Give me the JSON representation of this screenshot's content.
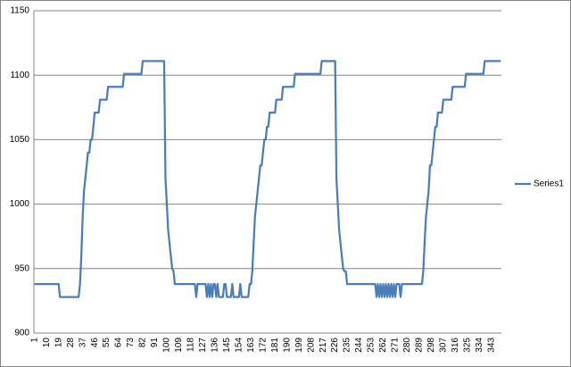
{
  "chart_data": {
    "type": "line",
    "categories": [
      1,
      null,
      null,
      null,
      null,
      null,
      null,
      null,
      null,
      10,
      null,
      null,
      null,
      null,
      null,
      null,
      null,
      null,
      19,
      null,
      null,
      null,
      null,
      null,
      null,
      null,
      null,
      28,
      null,
      null,
      null,
      null,
      null,
      null,
      null,
      null,
      37,
      null,
      null,
      null,
      null,
      null,
      null,
      null,
      null,
      46,
      null,
      null,
      null,
      null,
      null,
      null,
      null,
      null,
      55,
      null,
      null,
      null,
      null,
      null,
      null,
      null,
      null,
      64,
      null,
      null,
      null,
      null,
      null,
      null,
      null,
      null,
      73,
      null,
      null,
      null,
      null,
      null,
      null,
      null,
      null,
      82,
      null,
      null,
      null,
      null,
      null,
      null,
      null,
      null,
      91,
      null,
      null,
      null,
      null,
      null,
      null,
      null,
      null,
      100,
      null,
      null,
      null,
      null,
      null,
      null,
      null,
      null,
      109,
      null,
      null,
      null,
      null,
      null,
      null,
      null,
      null,
      118,
      null,
      null,
      null,
      null,
      null,
      null,
      null,
      null,
      127,
      null,
      null,
      null,
      null,
      null,
      null,
      null,
      null,
      136,
      null,
      null,
      null,
      null,
      null,
      null,
      null,
      null,
      145,
      null,
      null,
      null,
      null,
      null,
      null,
      null,
      null,
      154,
      null,
      null,
      null,
      null,
      null,
      null,
      null,
      null,
      163,
      null,
      null,
      null,
      null,
      null,
      null,
      null,
      null,
      172,
      null,
      null,
      null,
      null,
      null,
      null,
      null,
      null,
      181,
      null,
      null,
      null,
      null,
      null,
      null,
      null,
      null,
      190,
      null,
      null,
      null,
      null,
      null,
      null,
      null,
      null,
      199,
      null,
      null,
      null,
      null,
      null,
      null,
      null,
      null,
      208,
      null,
      null,
      null,
      null,
      null,
      null,
      null,
      null,
      217,
      null,
      null,
      null,
      null,
      null,
      null,
      null,
      null,
      226,
      null,
      null,
      null,
      null,
      null,
      null,
      null,
      null,
      235,
      null,
      null,
      null,
      null,
      null,
      null,
      null,
      null,
      244,
      null,
      null,
      null,
      null,
      null,
      null,
      null,
      null,
      253,
      null,
      null,
      null,
      null,
      null,
      null,
      null,
      null,
      262,
      null,
      null,
      null,
      null,
      null,
      null,
      null,
      null,
      271,
      null,
      null,
      null,
      null,
      null,
      null,
      null,
      null,
      280,
      null,
      null,
      null,
      null,
      null,
      null,
      null,
      null,
      289,
      null,
      null,
      null,
      null,
      null,
      null,
      null,
      null,
      298,
      null,
      null,
      null,
      null,
      null,
      null,
      null,
      null,
      307,
      null,
      null,
      null,
      null,
      null,
      null,
      null,
      null,
      316,
      null,
      null,
      null,
      null,
      null,
      null,
      null,
      null,
      325,
      null,
      null,
      null,
      null,
      null,
      null,
      null,
      null,
      334,
      null,
      null,
      null,
      null,
      null,
      null,
      null,
      null,
      343,
      null,
      null,
      null,
      null,
      null,
      null,
      null
    ],
    "series": [
      {
        "name": "Series1",
        "color": "#4a7ebb",
        "values": [
          938,
          938,
          938,
          938,
          938,
          938,
          938,
          938,
          938,
          938,
          938,
          938,
          938,
          938,
          938,
          938,
          938,
          938,
          938,
          928,
          928,
          928,
          928,
          928,
          928,
          928,
          928,
          928,
          928,
          928,
          928,
          928,
          928,
          928,
          938,
          960,
          990,
          1010,
          1020,
          1030,
          1040,
          1040,
          1050,
          1050,
          1060,
          1071,
          1071,
          1071,
          1071,
          1081,
          1081,
          1081,
          1081,
          1081,
          1081,
          1091,
          1091,
          1091,
          1091,
          1091,
          1091,
          1091,
          1091,
          1091,
          1091,
          1091,
          1091,
          1101,
          1101,
          1101,
          1101,
          1101,
          1101,
          1101,
          1101,
          1101,
          1101,
          1101,
          1101,
          1101,
          1101,
          1111,
          1111,
          1111,
          1111,
          1111,
          1111,
          1111,
          1111,
          1111,
          1111,
          1111,
          1111,
          1111,
          1111,
          1111,
          1111,
          1111,
          1020,
          1000,
          980,
          970,
          960,
          950,
          948,
          938,
          938,
          938,
          938,
          938,
          938,
          938,
          938,
          938,
          938,
          938,
          938,
          938,
          938,
          938,
          938,
          928,
          938,
          938,
          938,
          938,
          938,
          938,
          938,
          928,
          938,
          928,
          938,
          928,
          938,
          938,
          928,
          938,
          928,
          928,
          928,
          928,
          938,
          938,
          928,
          928,
          928,
          928,
          938,
          928,
          928,
          928,
          928,
          928,
          938,
          928,
          928,
          928,
          928,
          928,
          928,
          938,
          938,
          948,
          970,
          990,
          1000,
          1010,
          1020,
          1030,
          1030,
          1040,
          1050,
          1050,
          1060,
          1060,
          1071,
          1071,
          1071,
          1071,
          1071,
          1081,
          1081,
          1081,
          1081,
          1081,
          1091,
          1091,
          1091,
          1091,
          1091,
          1091,
          1091,
          1091,
          1091,
          1101,
          1101,
          1101,
          1101,
          1101,
          1101,
          1101,
          1101,
          1101,
          1101,
          1101,
          1101,
          1101,
          1101,
          1101,
          1101,
          1101,
          1101,
          1101,
          1101,
          1111,
          1111,
          1111,
          1111,
          1111,
          1111,
          1111,
          1111,
          1111,
          1111,
          1111,
          1020,
          1000,
          980,
          970,
          960,
          950,
          948,
          948,
          938,
          938,
          938,
          938,
          938,
          938,
          938,
          938,
          938,
          938,
          938,
          938,
          938,
          938,
          938,
          938,
          938,
          938,
          938,
          938,
          938,
          938,
          928,
          938,
          928,
          938,
          928,
          938,
          928,
          938,
          928,
          938,
          928,
          938,
          928,
          938,
          928,
          938,
          938,
          938,
          928,
          938,
          938,
          938,
          938,
          938,
          938,
          938,
          938,
          938,
          938,
          938,
          938,
          938,
          938,
          938,
          938,
          948,
          970,
          990,
          1000,
          1010,
          1030,
          1030,
          1040,
          1050,
          1060,
          1060,
          1071,
          1071,
          1071,
          1071,
          1081,
          1081,
          1081,
          1081,
          1081,
          1081,
          1081,
          1091,
          1091,
          1091,
          1091,
          1091,
          1091,
          1091,
          1091,
          1091,
          1091,
          1101,
          1101,
          1101,
          1101,
          1101,
          1101,
          1101,
          1101,
          1101,
          1101,
          1101,
          1101,
          1101,
          1101,
          1111,
          1111,
          1111,
          1111,
          1111,
          1111,
          1111,
          1111,
          1111,
          1111,
          1111,
          1111,
          1111
        ]
      }
    ],
    "ylim": [
      900,
      1150
    ],
    "yticks": [
      900,
      950,
      1000,
      1050,
      1100,
      1150
    ],
    "grid": true,
    "legend": "right"
  }
}
